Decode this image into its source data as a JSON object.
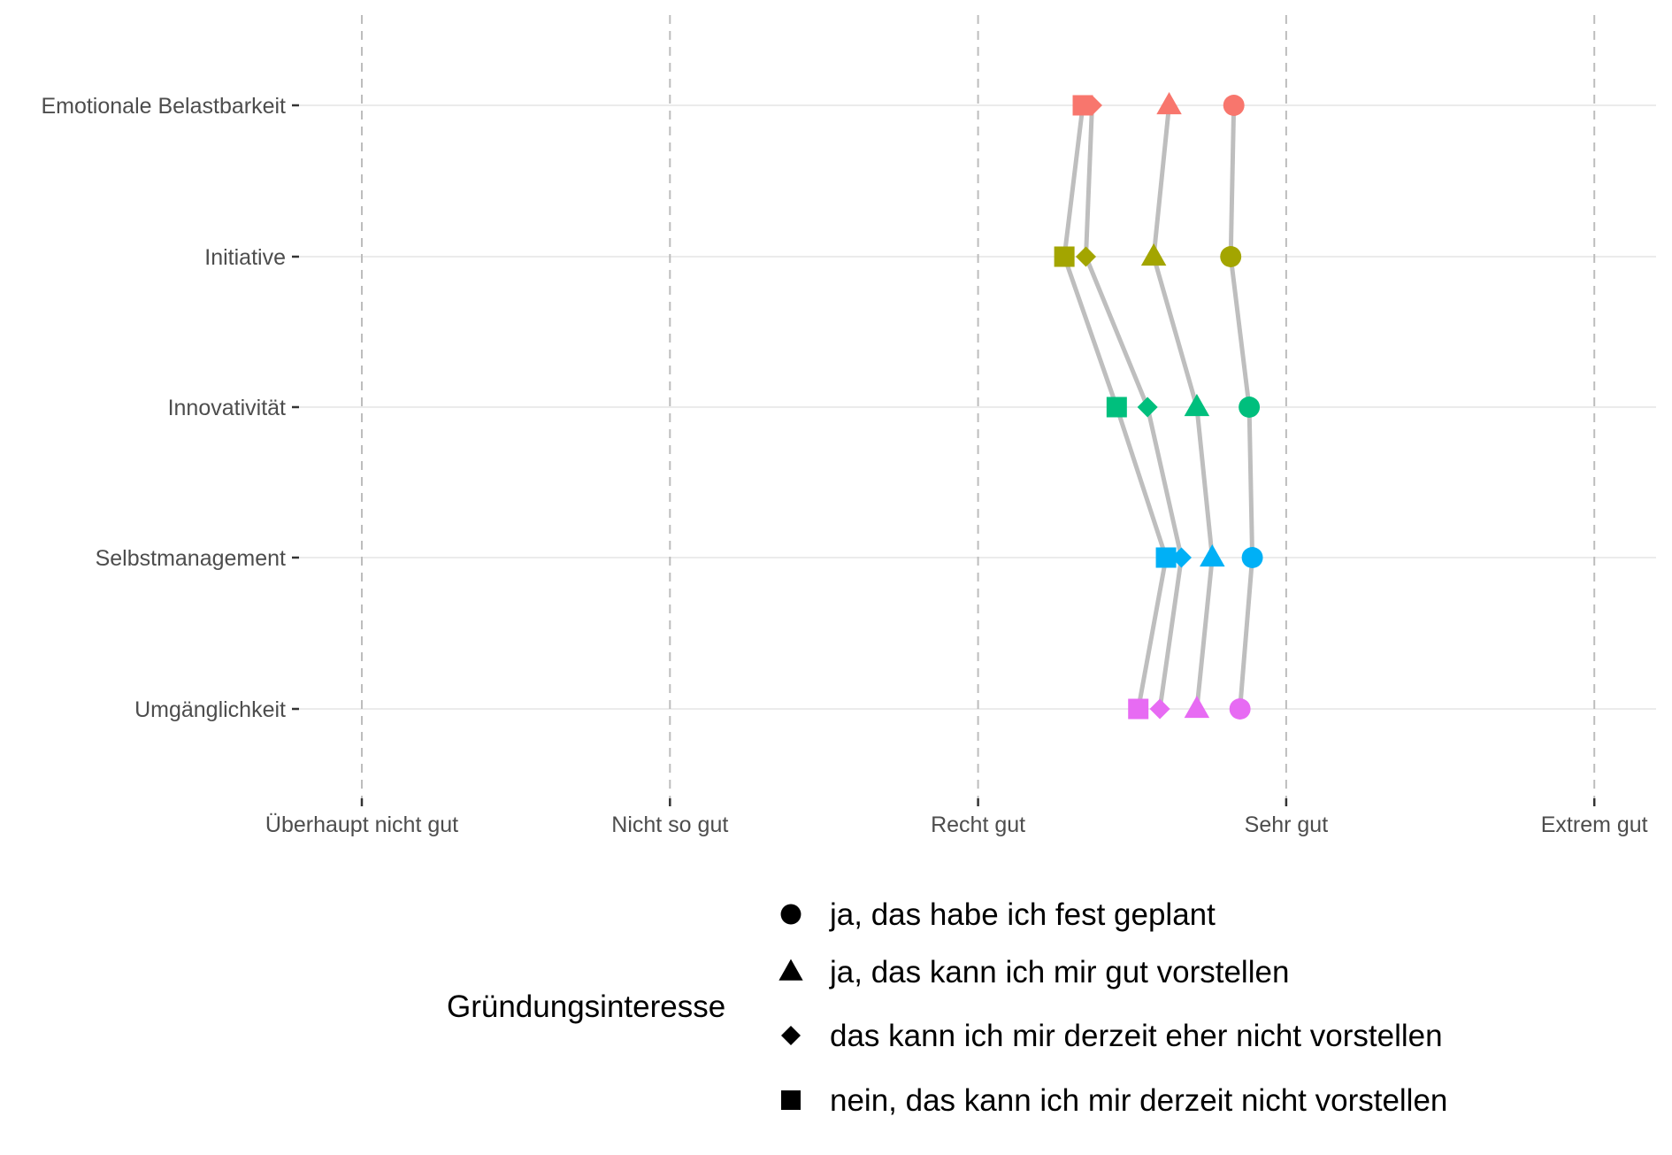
{
  "chart_data": {
    "type": "scatter",
    "subtype": "dot-plot with connecting lines",
    "title": "",
    "xlabel": "",
    "ylabel": "",
    "x_ticks": [
      "Überhaupt nicht gut",
      "Nicht so gut",
      "Recht gut",
      "Sehr gut",
      "Extrem gut"
    ],
    "x_tick_values": [
      1,
      2,
      3,
      4,
      5
    ],
    "xlim": [
      1,
      5
    ],
    "categories": [
      "Emotionale Belastbarkeit",
      "Initiative",
      "Innovativität",
      "Selbstmanagement",
      "Umgänglichkeit"
    ],
    "category_colors": [
      "#F8766D",
      "#A3A500",
      "#00BF7D",
      "#00B0F6",
      "#E76BF3"
    ],
    "grid": {
      "x": "dashed",
      "y": "solid-light"
    },
    "legend": {
      "title": "Gründungsinteresse",
      "position": "bottom",
      "entries": [
        {
          "label": "ja, das habe ich fest geplant",
          "shape": "circle"
        },
        {
          "label": "ja, das kann ich mir gut vorstellen",
          "shape": "triangle"
        },
        {
          "label": "das kann ich mir derzeit eher nicht vorstellen",
          "shape": "diamond"
        },
        {
          "label": "nein, das kann ich mir derzeit nicht vorstellen",
          "shape": "square"
        }
      ]
    },
    "series": [
      {
        "name": "ja, das habe ich fest geplant",
        "shape": "circle",
        "values": [
          3.83,
          3.82,
          3.88,
          3.89,
          3.85
        ]
      },
      {
        "name": "ja, das kann ich mir gut vorstellen",
        "shape": "triangle",
        "values": [
          3.62,
          3.57,
          3.71,
          3.76,
          3.71
        ]
      },
      {
        "name": "das kann ich mir derzeit eher nicht vorstellen",
        "shape": "diamond",
        "values": [
          3.37,
          3.35,
          3.55,
          3.66,
          3.59
        ]
      },
      {
        "name": "nein, das kann ich mir derzeit nicht vorstellen",
        "shape": "square",
        "values": [
          3.34,
          3.28,
          3.45,
          3.61,
          3.52
        ]
      }
    ],
    "line_color": "#BEBEBE"
  }
}
